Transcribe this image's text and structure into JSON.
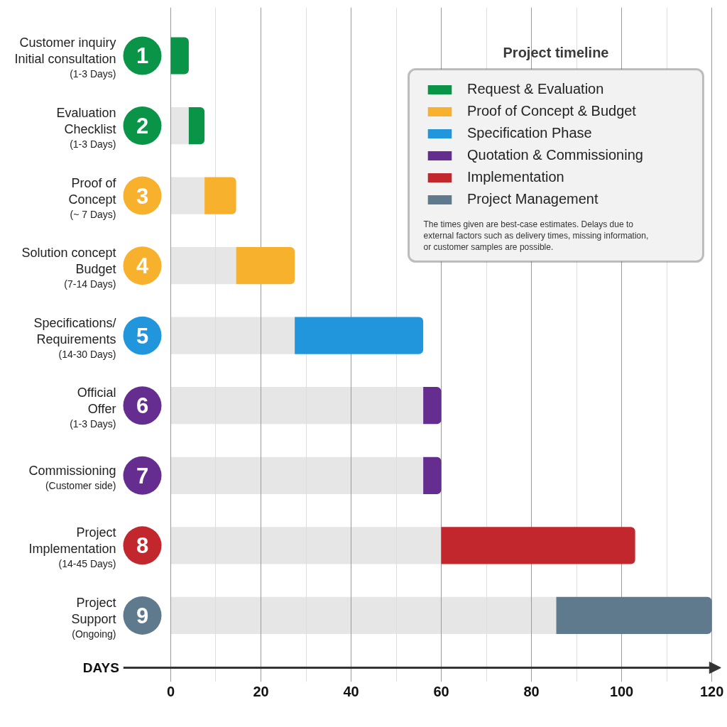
{
  "chart_data": {
    "type": "bar",
    "orientation": "horizontal",
    "stacked": true,
    "title": "Project timeline",
    "xlabel": "DAYS",
    "categories": [
      "Customer inquiry\nInitial consultation\n(1-3 Days)",
      "Evaluation\nChecklist\n(1-3 Days)",
      "Proof of\nConcept\n(~ 7 Days)",
      "Solution concept\nBudget\n(7-14 Days)",
      "Specifications/\nRequirements\n(14-30 Days)",
      "Official\nOffer\n(1-3 Days)",
      "Commissioning\n(Customer side)",
      "Project\nImplementation\n(14-45 Days)",
      "Project\nSupport\n(Ongoing)"
    ],
    "series": [
      {
        "color": "#e6e6e6",
        "values": [
          null,
          4,
          7.5,
          14.5,
          27.5,
          56,
          56,
          60,
          85.5
        ]
      },
      {
        "name": "Request & Evaluation",
        "color": "#0a9447",
        "values": [
          4,
          3.5,
          null,
          null,
          null,
          null,
          null,
          null,
          null
        ]
      },
      {
        "name": "Proof of Concept & Budget",
        "color": "#f8b12c",
        "values": [
          null,
          null,
          7,
          13,
          null,
          null,
          null,
          null,
          null
        ]
      },
      {
        "name": "Specification Phase",
        "color": "#2196dc",
        "values": [
          null,
          null,
          null,
          null,
          28.5,
          null,
          null,
          null,
          null
        ]
      },
      {
        "name": "Quotation & Commissioning",
        "color": "#662d91",
        "values": [
          null,
          null,
          null,
          null,
          null,
          4,
          4,
          null,
          null
        ]
      },
      {
        "name": "Implementation",
        "color": "#c1272d",
        "values": [
          null,
          null,
          null,
          null,
          null,
          null,
          null,
          43,
          null
        ]
      },
      {
        "name": "Project Management",
        "color": "#5f7a8d",
        "values": [
          null,
          null,
          null,
          null,
          null,
          null,
          null,
          null,
          34.5
        ]
      }
    ],
    "xlim": [
      -10.5,
      122
    ],
    "xticks": [
      0,
      {
        "value": 10,
        "label": null
      },
      20,
      {
        "value": 30,
        "label": null
      },
      40,
      {
        "value": 50,
        "label": null
      },
      60,
      {
        "value": 70,
        "label": null
      },
      80,
      {
        "value": 90,
        "label": null
      },
      100,
      {
        "value": 110,
        "label": null
      },
      120
    ],
    "grid": "x",
    "legend": "top right",
    "annotations": [
      "1",
      "2",
      "3",
      "4",
      "5",
      "6",
      "7",
      "8",
      "9",
      "The times given are best-case estimates. Delays due to external factors such as delivery times, missing information, or customer samples are possible."
    ]
  }
}
